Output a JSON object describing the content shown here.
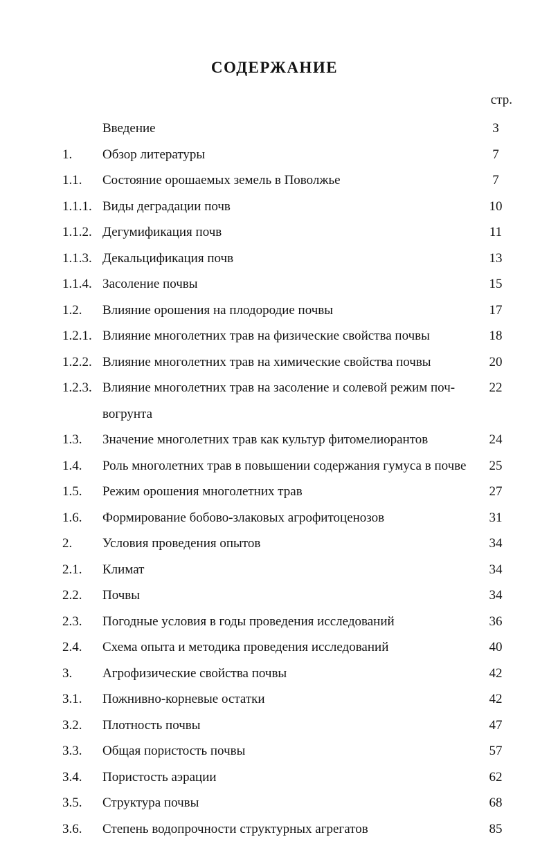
{
  "header": {
    "title": "СОДЕРЖАНИЕ",
    "page_label": "стр."
  },
  "toc": {
    "entries": [
      {
        "num": "",
        "title": "Введение",
        "page": "3"
      },
      {
        "num": "1.",
        "title": "Обзор литературы",
        "page": "7"
      },
      {
        "num": "1.1.",
        "title": "Состояние орошаемых земель в Поволжье",
        "page": "7"
      },
      {
        "num": "1.1.1.",
        "title": "Виды деградации почв",
        "page": "10"
      },
      {
        "num": "1.1.2.",
        "title": "Дегумификация почв",
        "page": "11"
      },
      {
        "num": "1.1.3.",
        "title": "Декальцификация почв",
        "page": "13"
      },
      {
        "num": "1.1.4.",
        "title": "Засоление почвы",
        "page": "15"
      },
      {
        "num": "1.2.",
        "title": "Влияние орошения на плодородие почвы",
        "page": "17"
      },
      {
        "num": "1.2.1.",
        "title": "Влияние многолетних трав на физические свойства почвы",
        "page": "18"
      },
      {
        "num": "1.2.2.",
        "title": "Влияние многолетних трав на химические свойства почвы",
        "page": "20"
      },
      {
        "num": "1.2.3.",
        "title": "Влияние многолетних трав на засоление и солевой режим поч-\nвогрунта",
        "page": "22"
      },
      {
        "num": "1.3.",
        "title": "Значение многолетних трав как культур фитомелиорантов",
        "page": "24"
      },
      {
        "num": "1.4.",
        "title": "Роль многолетних трав в повышении содержания гумуса в почве",
        "page": "25"
      },
      {
        "num": "1.5.",
        "title": "Режим орошения многолетних трав",
        "page": "27"
      },
      {
        "num": "1.6.",
        "title": "Формирование бобово-злаковых агрофитоценозов",
        "page": "31"
      },
      {
        "num": "2.",
        "title": "Условия проведения опытов",
        "page": "34"
      },
      {
        "num": "2.1.",
        "title": "Климат",
        "page": "34"
      },
      {
        "num": "2.2.",
        "title": "Почвы",
        "page": "34"
      },
      {
        "num": "2.3.",
        "title": "Погодные условия в годы проведения исследований",
        "page": "36"
      },
      {
        "num": "2.4.",
        "title": "Схема опыта и методика проведения исследований",
        "page": "40"
      },
      {
        "num": "3.",
        "title": "Агрофизические свойства почвы",
        "page": "42"
      },
      {
        "num": "3.1.",
        "title": "Пожнивно-корневые остатки",
        "page": "42"
      },
      {
        "num": "3.2.",
        "title": "Плотность почвы",
        "page": "47"
      },
      {
        "num": "3.3.",
        "title": "Общая пористость почвы",
        "page": "57"
      },
      {
        "num": "3.4.",
        "title": "Пористость аэрации",
        "page": "62"
      },
      {
        "num": "3.5.",
        "title": "Структура почвы",
        "page": "68"
      },
      {
        "num": "3.6.",
        "title": "Степень водопрочности структурных агрегатов",
        "page": "85"
      }
    ]
  }
}
